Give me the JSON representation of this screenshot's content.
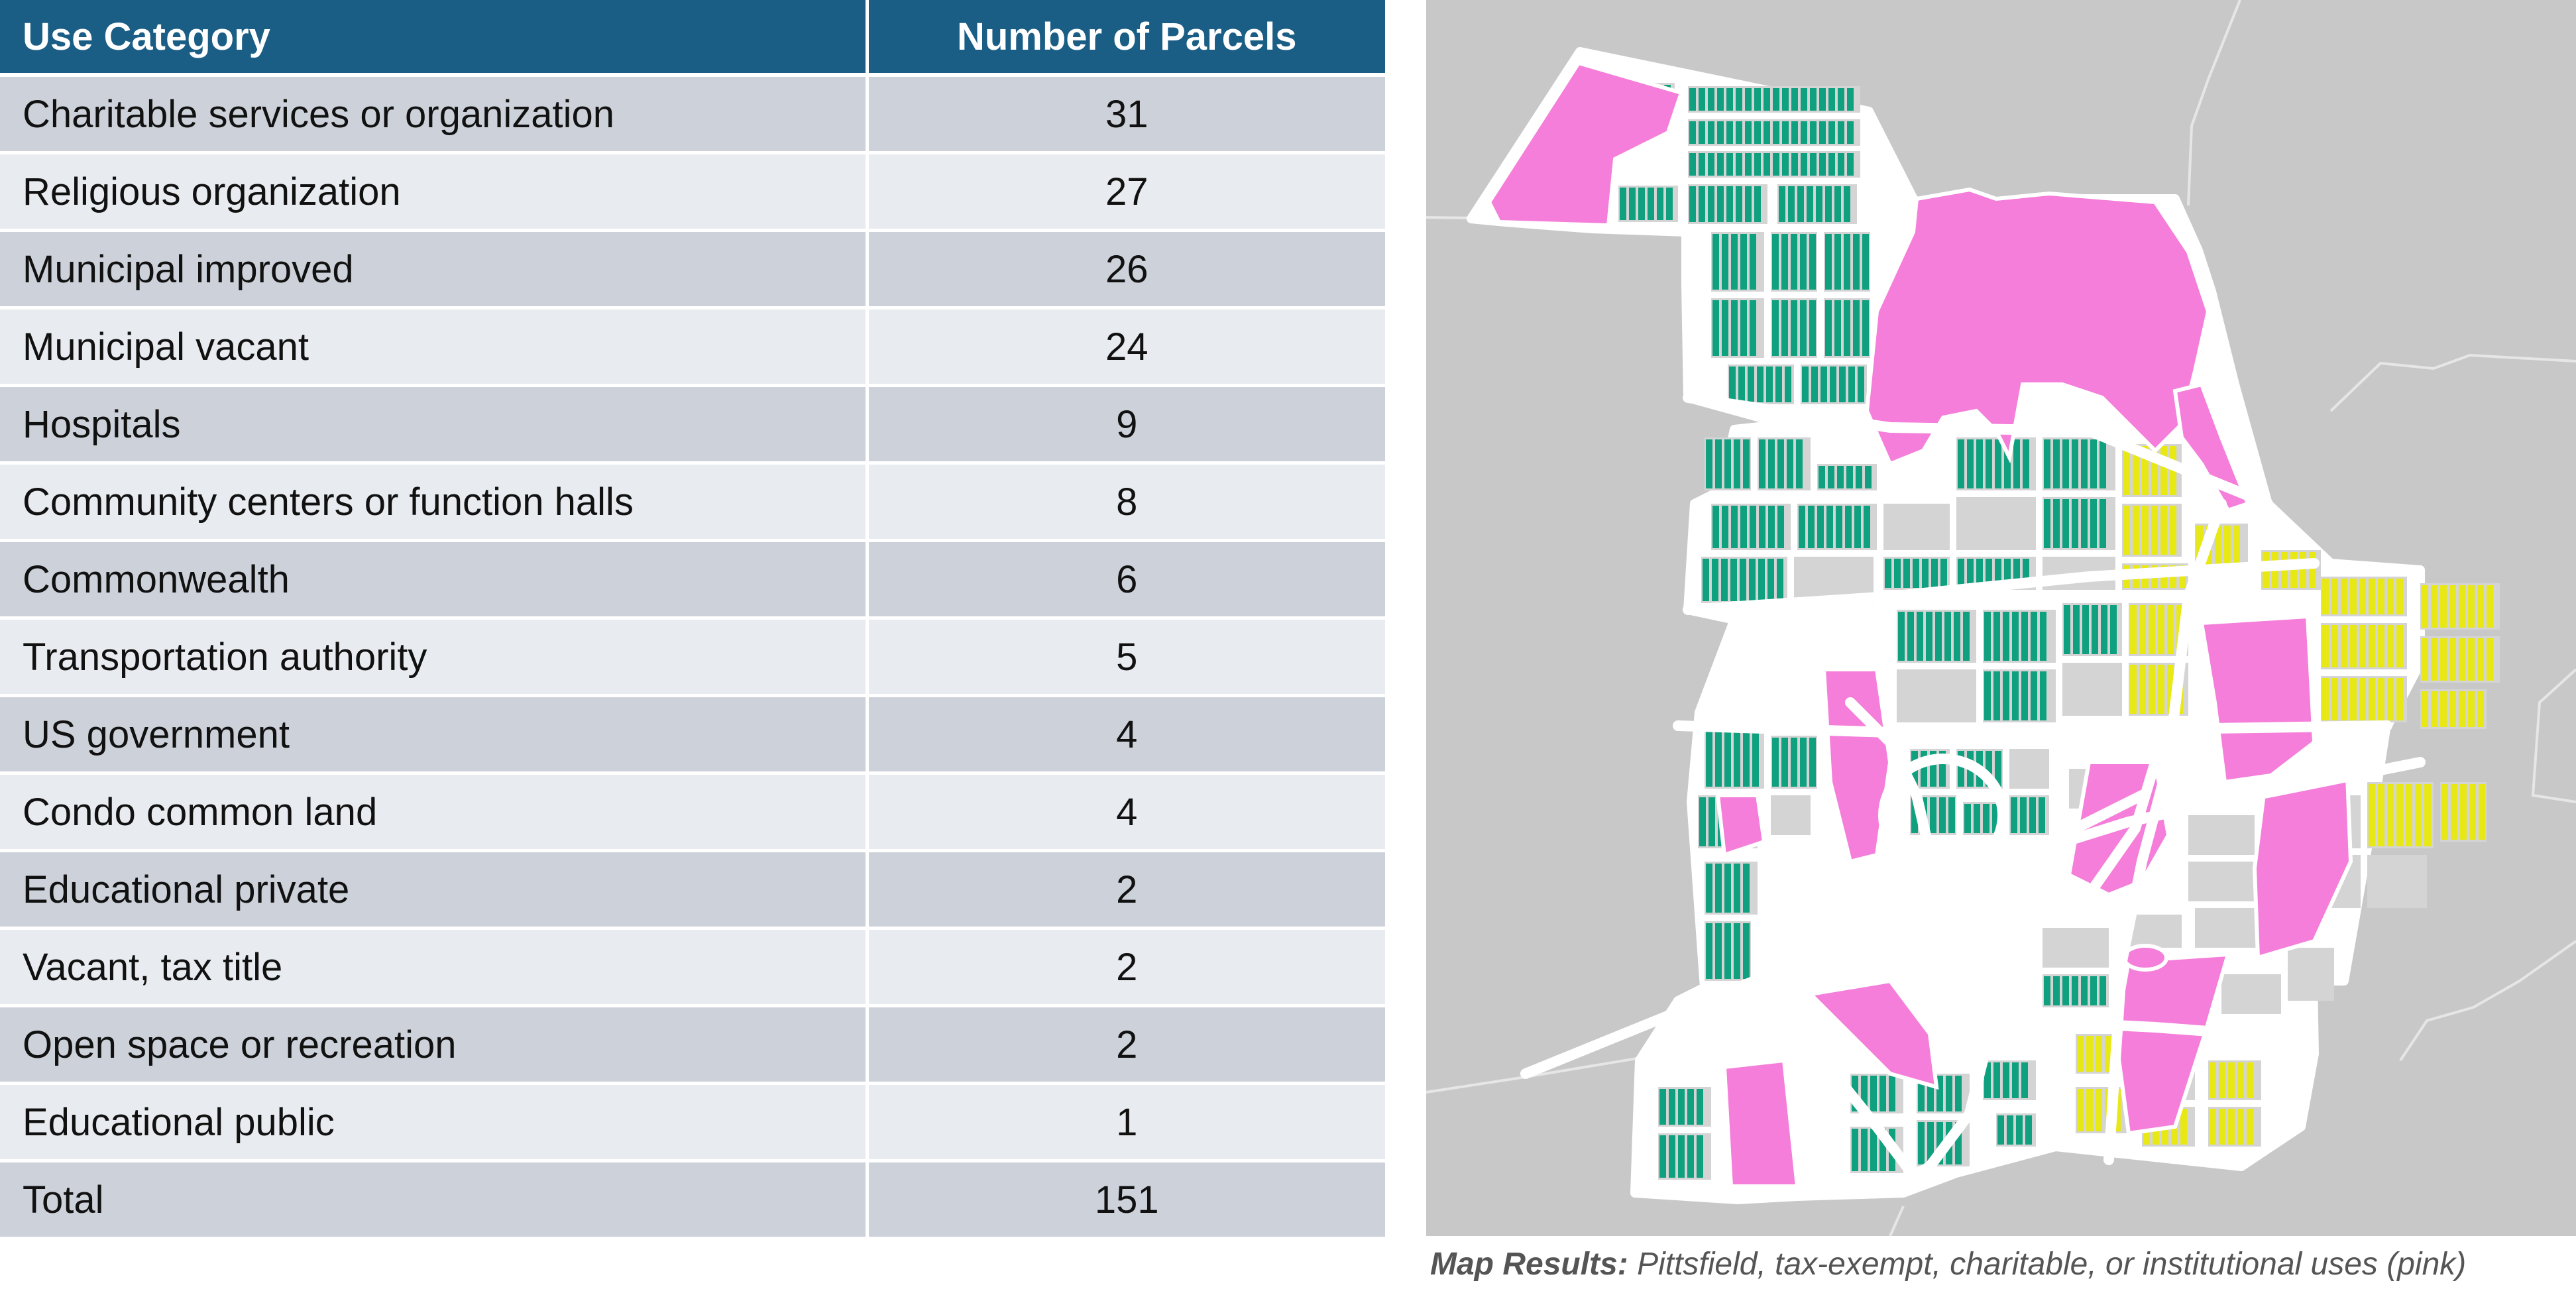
{
  "table": {
    "headers": {
      "category": "Use Category",
      "count": "Number of Parcels"
    },
    "rows": [
      {
        "category": "Charitable services or organization",
        "count": "31"
      },
      {
        "category": "Religious organization",
        "count": "27"
      },
      {
        "category": "Municipal improved",
        "count": "26"
      },
      {
        "category": "Municipal vacant",
        "count": "24"
      },
      {
        "category": "Hospitals",
        "count": "9"
      },
      {
        "category": "Community centers or function halls",
        "count": "8"
      },
      {
        "category": "Commonwealth",
        "count": "6"
      },
      {
        "category": "Transportation authority",
        "count": "5"
      },
      {
        "category": "US government",
        "count": "4"
      },
      {
        "category": "Condo common land",
        "count": "4"
      },
      {
        "category": "Educational private",
        "count": "2"
      },
      {
        "category": "Vacant, tax title",
        "count": "2"
      },
      {
        "category": "Open space or recreation",
        "count": "2"
      },
      {
        "category": "Educational public",
        "count": "1"
      },
      {
        "category": "Total",
        "count": "151"
      }
    ]
  },
  "map": {
    "colors": {
      "background": "#c8c8c8",
      "streets": "#ffffff",
      "residential": "#0fa07f",
      "commercial": "#e8e815",
      "exempt": "#f47ed9",
      "other": "#d4d4d4"
    }
  },
  "caption": {
    "lead": "Map Results:",
    "text": "Pittsfield, tax-exempt, charitable, or institutional uses (pink)"
  }
}
